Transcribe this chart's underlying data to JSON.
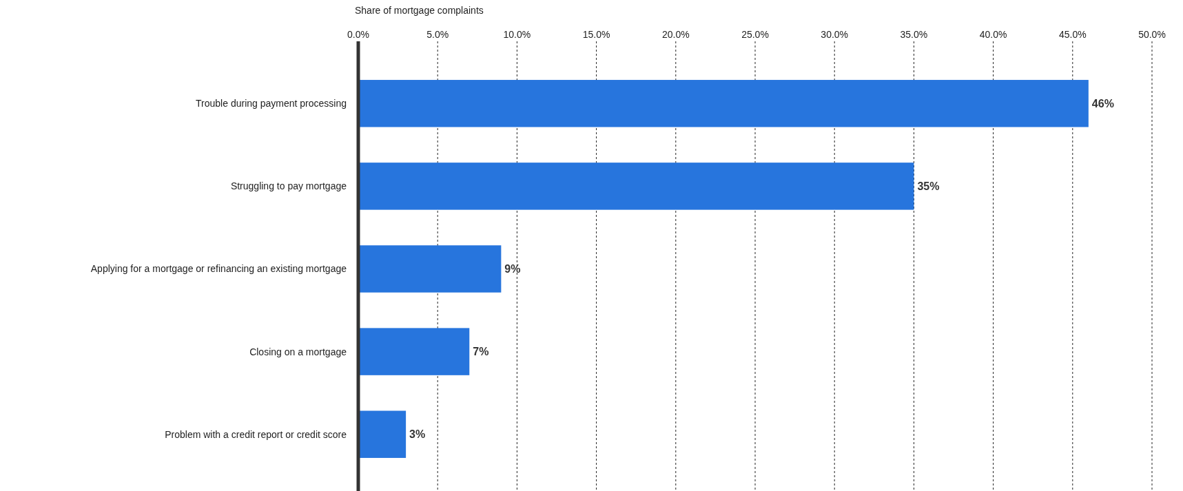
{
  "chart_data": {
    "type": "bar",
    "orientation": "horizontal",
    "xlabel": "Share of mortgage complaints",
    "categories": [
      "Trouble during payment processing",
      "Struggling to pay mortgage",
      "Applying for a mortgage or refinancing an existing mortgage",
      "Closing on a mortgage",
      "Problem with a credit report or credit score"
    ],
    "values": [
      46,
      35,
      9,
      7,
      3
    ],
    "value_labels": [
      "46%",
      "35%",
      "9%",
      "7%",
      "3%"
    ],
    "color": "#2775dd",
    "xlim": [
      0,
      50
    ],
    "xticks": [
      {
        "value": 0,
        "label": "0.0%"
      },
      {
        "value": 5,
        "label": "5.0%"
      },
      {
        "value": 10,
        "label": "10.0%"
      },
      {
        "value": 15,
        "label": "15.0%"
      },
      {
        "value": 20,
        "label": "20.0%"
      },
      {
        "value": 25,
        "label": "25.0%"
      },
      {
        "value": 30,
        "label": "30.0%"
      },
      {
        "value": 35,
        "label": "35.0%"
      },
      {
        "value": 40,
        "label": "40.0%"
      },
      {
        "value": 45,
        "label": "45.0%"
      },
      {
        "value": 50,
        "label": "50.0%"
      }
    ],
    "grid": "x"
  }
}
